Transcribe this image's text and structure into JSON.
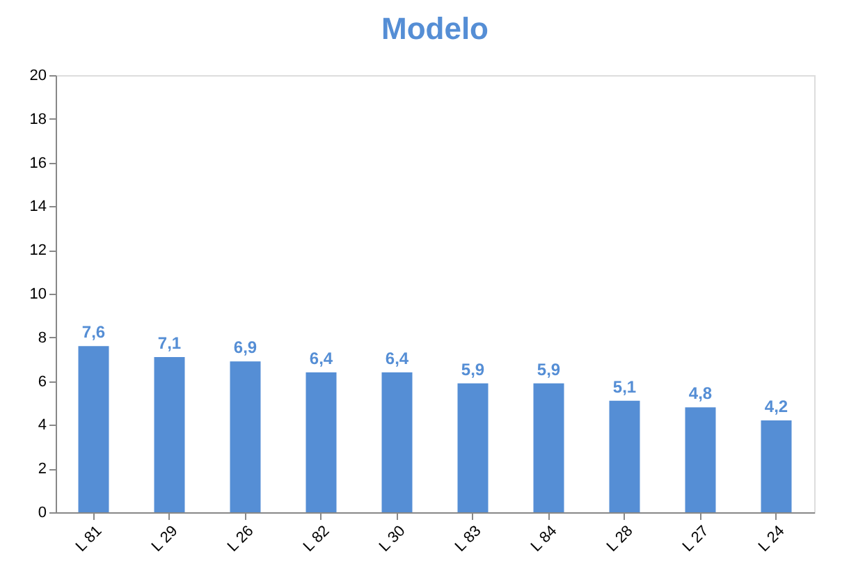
{
  "chart_data": {
    "type": "bar",
    "title": "Modelo",
    "categories": [
      "L 81",
      "L 29",
      "L 26",
      "L 82",
      "L 30",
      "L 83",
      "L 84",
      "L 28",
      "L 27",
      "L 24"
    ],
    "values": [
      7.6,
      7.1,
      6.9,
      6.4,
      6.4,
      5.9,
      5.9,
      5.1,
      4.8,
      4.2
    ],
    "value_labels": [
      "7,6",
      "7,1",
      "6,9",
      "6,4",
      "6,4",
      "5,9",
      "5,9",
      "5,1",
      "4,8",
      "4,2"
    ],
    "color": "#558ed5",
    "ylim": [
      0,
      20
    ],
    "yticks": [
      0,
      2,
      4,
      6,
      8,
      10,
      12,
      14,
      16,
      18,
      20
    ],
    "grid": false
  }
}
